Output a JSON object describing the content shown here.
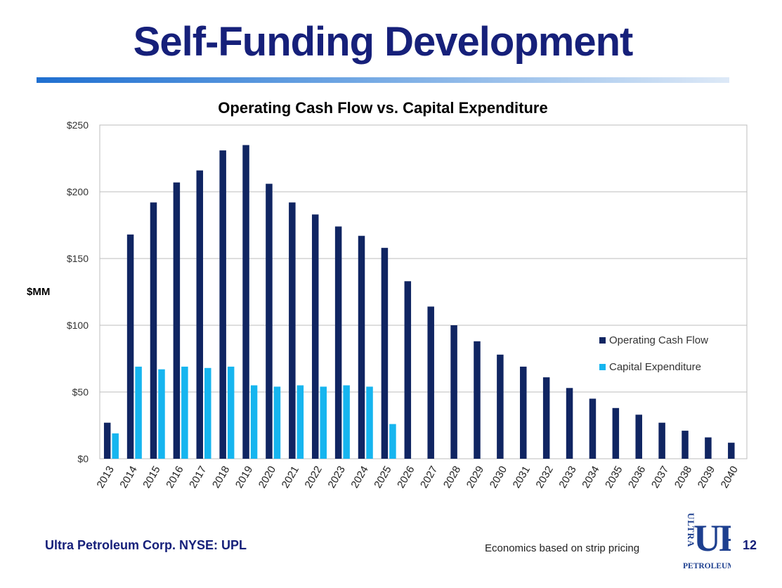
{
  "slide": {
    "title": "Self-Funding Development",
    "footer_company": "Ultra Petroleum Corp. NYSE: UPL",
    "footer_note": "Economics based on strip pricing",
    "page_number": "12",
    "logo": {
      "vertical_text": "ULTRA",
      "letters": "UP",
      "name": "PETROLEUM"
    }
  },
  "colors": {
    "title": "#16207a",
    "ocf": "#102562",
    "capex": "#16b5ef",
    "grid": "#bdbdbd"
  },
  "chart_data": {
    "type": "bar",
    "title": "Operating Cash Flow vs. Capital Expenditure",
    "ylabel": "$MM",
    "xlabel": "",
    "ylim": [
      0,
      250
    ],
    "yticks": [
      0,
      50,
      100,
      150,
      200,
      250
    ],
    "ytick_labels": [
      "$0",
      "$50",
      "$100",
      "$150",
      "$200",
      "$250"
    ],
    "grid": true,
    "legend_position": "right",
    "categories": [
      "2013",
      "2014",
      "2015",
      "2016",
      "2017",
      "2018",
      "2019",
      "2020",
      "2021",
      "2022",
      "2023",
      "2024",
      "2025",
      "2026",
      "2027",
      "2028",
      "2029",
      "2030",
      "2031",
      "2032",
      "2033",
      "2034",
      "2035",
      "2036",
      "2037",
      "2038",
      "2039",
      "2040"
    ],
    "series": [
      {
        "name": "Operating Cash Flow",
        "color": "#102562",
        "values": [
          27,
          168,
          192,
          207,
          216,
          231,
          235,
          206,
          192,
          183,
          174,
          167,
          158,
          133,
          114,
          100,
          88,
          78,
          69,
          61,
          53,
          45,
          38,
          33,
          27,
          21,
          16,
          12
        ]
      },
      {
        "name": "Capital Expenditure",
        "color": "#16b5ef",
        "values": [
          19,
          69,
          67,
          69,
          68,
          69,
          55,
          54,
          55,
          54,
          55,
          54,
          26,
          null,
          null,
          null,
          null,
          null,
          null,
          null,
          null,
          null,
          null,
          null,
          null,
          null,
          null,
          null
        ]
      }
    ]
  }
}
